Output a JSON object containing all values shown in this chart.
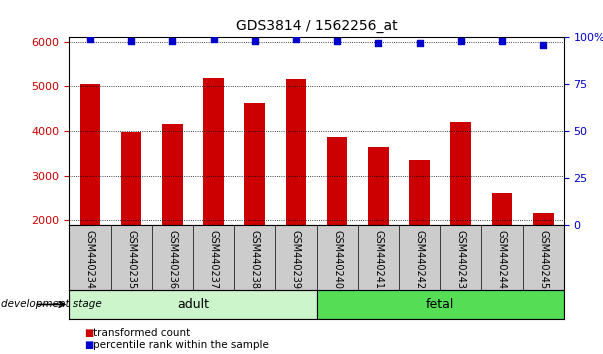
{
  "title": "GDS3814 / 1562256_at",
  "categories": [
    "GSM440234",
    "GSM440235",
    "GSM440236",
    "GSM440237",
    "GSM440238",
    "GSM440239",
    "GSM440240",
    "GSM440241",
    "GSM440242",
    "GSM440243",
    "GSM440244",
    "GSM440245"
  ],
  "transformed_counts": [
    5060,
    3970,
    4160,
    5190,
    4620,
    5160,
    3870,
    3640,
    3360,
    4200,
    2610,
    2170
  ],
  "percentile_ranks": [
    99,
    98,
    98,
    99,
    98,
    99,
    98,
    97,
    97,
    98,
    98,
    96
  ],
  "bar_color": "#cc0000",
  "dot_color": "#0000cc",
  "ylim_left": [
    1900,
    6100
  ],
  "ylim_right": [
    0,
    100
  ],
  "yticks_left": [
    2000,
    3000,
    4000,
    5000,
    6000
  ],
  "yticks_right": [
    0,
    25,
    50,
    75,
    100
  ],
  "adult_label": "adult",
  "fetal_label": "fetal",
  "adult_color": "#ccf5cc",
  "fetal_color": "#55dd55",
  "dev_stage_label": "development stage",
  "legend_bar_label": "transformed count",
  "legend_dot_label": "percentile rank within the sample",
  "tick_area_color": "#cccccc",
  "grid_color": "#000000",
  "title_fontsize": 10,
  "axis_fontsize": 8,
  "tick_label_fontsize": 7,
  "right_tick_labels": [
    "0",
    "25",
    "50",
    "75",
    "100%"
  ]
}
